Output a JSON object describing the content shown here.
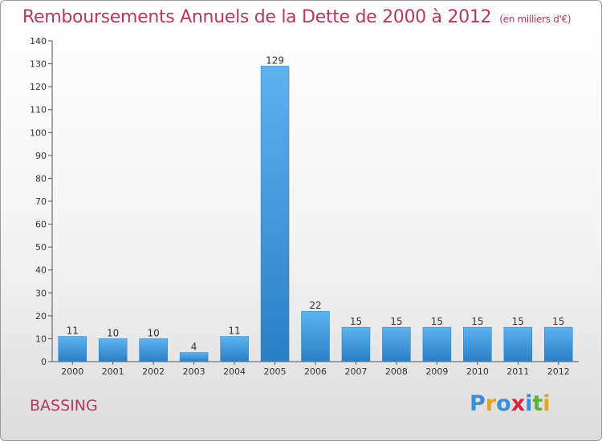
{
  "header": {
    "title": "Remboursements Annuels de la Dette de 2000 à 2012",
    "unit": "(en milliers d'€)"
  },
  "footer": {
    "commune": "BASSING",
    "logo_letters": [
      {
        "ch": "P",
        "color": "#3a8fd9"
      },
      {
        "ch": "r",
        "color": "#e9a21f"
      },
      {
        "ch": "o",
        "color": "#3a8fd9"
      },
      {
        "ch": "x",
        "color": "#d7263d"
      },
      {
        "ch": "i",
        "color": "#3a8fd9"
      },
      {
        "ch": "t",
        "color": "#5cb338"
      },
      {
        "ch": "i",
        "color": "#e9a21f"
      }
    ]
  },
  "chart_data": {
    "type": "bar",
    "title": "Remboursements Annuels de la Dette de 2000 à 2012",
    "unit": "(en milliers d'€)",
    "categories": [
      "2000",
      "2001",
      "2002",
      "2003",
      "2004",
      "2005",
      "2006",
      "2007",
      "2008",
      "2009",
      "2010",
      "2011",
      "2012"
    ],
    "values": [
      11,
      10,
      10,
      4,
      11,
      129,
      22,
      15,
      15,
      15,
      15,
      15,
      15
    ],
    "ylim": [
      0,
      140
    ],
    "yticks": [
      0,
      10,
      20,
      30,
      40,
      50,
      60,
      70,
      80,
      90,
      100,
      110,
      120,
      130,
      140
    ],
    "grid": false,
    "legend": "none",
    "bar_color": "#4aa3e6"
  }
}
